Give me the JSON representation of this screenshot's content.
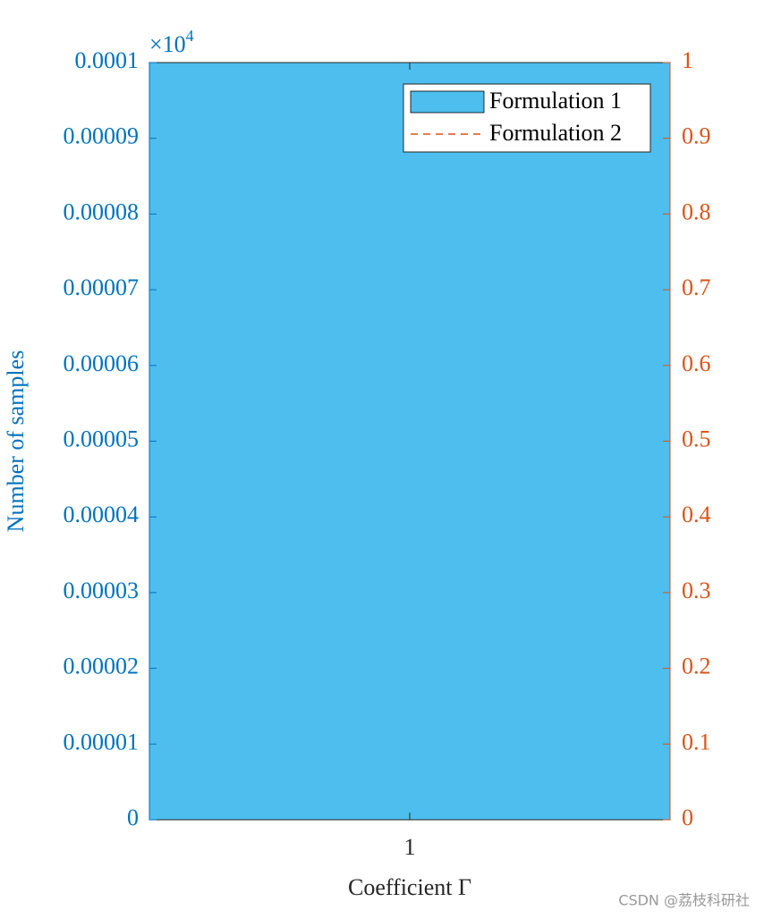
{
  "chart_data": {
    "type": "bar",
    "categories": [
      "1"
    ],
    "series": [
      {
        "name": "Formulation 1",
        "color": "#4dbeee",
        "values": [
          1
        ]
      },
      {
        "name": "Formulation 2",
        "color": "#d95319",
        "values": [
          0
        ],
        "axis": "y2",
        "line_style": "dashed"
      }
    ],
    "xlabel": "Coefficient Γ",
    "ylabel": "Number of samples",
    "y_multiplier": {
      "base": "×10",
      "exponent": "4"
    },
    "ylim": [
      0,
      0.0001
    ],
    "yticks": [
      0,
      1e-05,
      2e-05,
      3e-05,
      4e-05,
      5e-05,
      6e-05,
      7e-05,
      8e-05,
      9e-05,
      0.0001
    ],
    "y2lim": [
      0,
      1
    ],
    "y2ticks": [
      0,
      0.1,
      0.2,
      0.3,
      0.4,
      0.5,
      0.6,
      0.7,
      0.8,
      0.9,
      1
    ],
    "ycolor": "#0072bd",
    "y2color": "#d95319",
    "legend": "upper right",
    "watermark": "CSDN @荔枝科研社"
  }
}
